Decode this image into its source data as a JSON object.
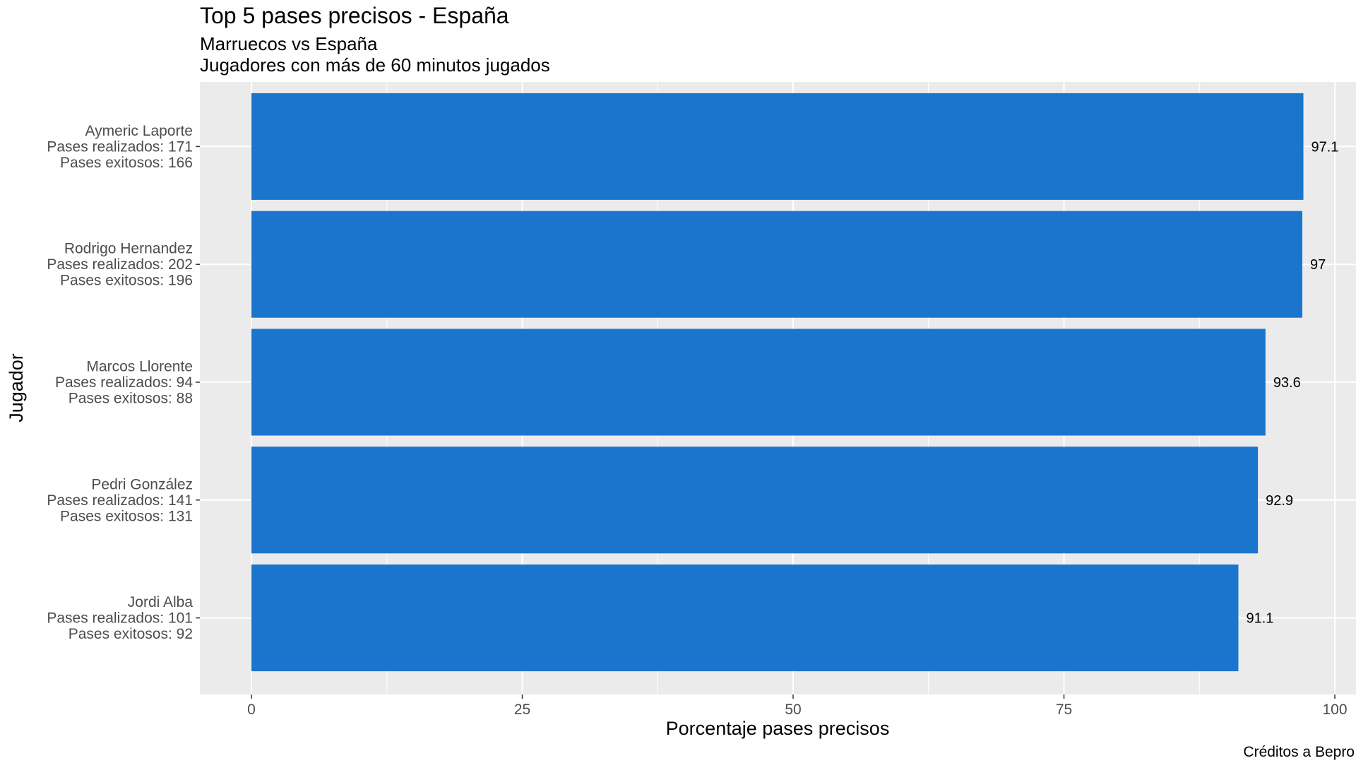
{
  "chart_data": {
    "type": "bar",
    "orientation": "horizontal",
    "title": "Top 5 pases precisos - España",
    "subtitle": [
      "Marruecos vs España",
      "Jugadores con más de 60 minutos jugados"
    ],
    "xlabel": "Porcentaje pases precisos",
    "ylabel": "Jugador",
    "caption": "Créditos a Bepro",
    "xlim": [
      0,
      100
    ],
    "xticks": [
      "0",
      "25",
      "50",
      "75",
      "100"
    ],
    "grid": true,
    "colors": {
      "bar": "#1b75cd",
      "panel": "#ebebeb",
      "grid": "#ffffff"
    },
    "categories": [
      [
        "Aymeric Laporte",
        "Pases realizados:  171",
        "Pases exitosos:  166"
      ],
      [
        "Rodrigo Hernandez",
        "Pases realizados:  202",
        "Pases exitosos:  196"
      ],
      [
        "Marcos Llorente",
        "Pases realizados:  94",
        "Pases exitosos:  88"
      ],
      [
        "Pedri González",
        "Pases realizados:  141",
        "Pases exitosos:  131"
      ],
      [
        "Jordi Alba",
        "Pases realizados:  101",
        "Pases exitosos:  92"
      ]
    ],
    "values": [
      97.1,
      97,
      93.6,
      92.9,
      91.1
    ],
    "value_labels": [
      "97.1",
      "97",
      "93.6",
      "92.9",
      "91.1"
    ]
  }
}
